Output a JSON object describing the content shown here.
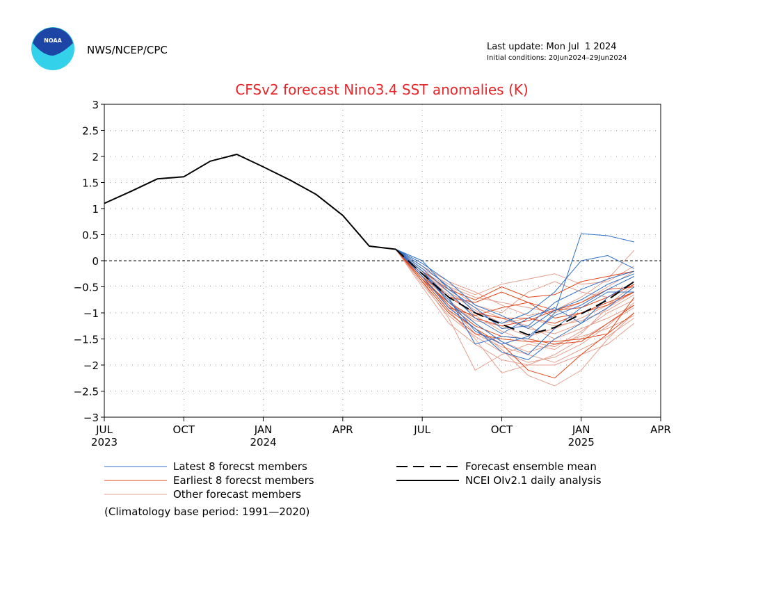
{
  "header": {
    "agency": "NWS/NCEP/CPC",
    "logo_text": "NOAA",
    "last_update": "Last update: Mon Jul  1 2024",
    "initial_conditions": "Initial conditions: 20Jun2024–29Jun2024"
  },
  "colors": {
    "title": "#e8262a",
    "latest": "#2f6fc6",
    "earliest": "#e0481b",
    "other": "#e3a08f",
    "analysis": "#000000",
    "logo_outer": "#34d1ea",
    "logo_inner": "#1d45a6"
  },
  "chart_data": {
    "type": "line",
    "title": "CFSv2 forecast Nino3.4 SST anomalies (K)",
    "xlabel": "",
    "ylabel": "",
    "ylim": [
      -3,
      3
    ],
    "xlim": [
      0,
      21
    ],
    "x_unit": "months since Jul 2023",
    "yticks": [
      "3",
      "2.5",
      "2",
      "1.5",
      "1",
      "0.5",
      "0",
      "−0.5",
      "−1",
      "−1.5",
      "−2",
      "−2.5",
      "−3"
    ],
    "ytick_values": [
      3,
      2.5,
      2,
      1.5,
      1,
      0.5,
      0,
      -0.5,
      -1,
      -1.5,
      -2,
      -2.5,
      -3
    ],
    "xticks": [
      {
        "x": 0,
        "label": "JUL",
        "year": "2023"
      },
      {
        "x": 3,
        "label": "OCT",
        "year": ""
      },
      {
        "x": 6,
        "label": "JAN",
        "year": "2024"
      },
      {
        "x": 9,
        "label": "APR",
        "year": ""
      },
      {
        "x": 12,
        "label": "JUL",
        "year": ""
      },
      {
        "x": 15,
        "label": "OCT",
        "year": ""
      },
      {
        "x": 18,
        "label": "JAN",
        "year": "2025"
      },
      {
        "x": 21,
        "label": "APR",
        "year": ""
      }
    ],
    "zero_line": 0,
    "grid": true,
    "analysis": {
      "name": "NCEI OIv2.1 daily analysis",
      "x": [
        0,
        1,
        2,
        3,
        4,
        5,
        6,
        7,
        8,
        9,
        10,
        11
      ],
      "y": [
        1.1,
        1.33,
        1.57,
        1.61,
        1.91,
        2.04,
        1.8,
        1.55,
        1.27,
        0.87,
        0.28,
        0.22
      ]
    },
    "ensemble_mean": {
      "name": "Forecast ensemble mean",
      "x": [
        11,
        12,
        13,
        14,
        15,
        16,
        17,
        18,
        19,
        20
      ],
      "y": [
        0.22,
        -0.25,
        -0.7,
        -1.0,
        -1.22,
        -1.42,
        -1.28,
        -1.02,
        -0.75,
        -0.4
      ]
    },
    "series": [
      {
        "name": "Latest 8 forecst members",
        "group": "latest",
        "x": [
          11,
          12,
          13,
          14,
          15,
          16,
          17,
          18,
          19,
          20
        ],
        "y": [
          0.22,
          -0.2,
          -0.7,
          -1.6,
          -1.45,
          -1.5,
          -1.0,
          0.52,
          0.48,
          0.36
        ]
      },
      {
        "name": "Latest 8 forecst members",
        "group": "latest",
        "x": [
          11,
          12,
          13,
          14,
          15,
          16,
          17,
          18,
          19,
          20
        ],
        "y": [
          0.22,
          -0.1,
          -0.5,
          -1.0,
          -1.2,
          -1.0,
          -0.6,
          0.0,
          0.1,
          -0.15
        ]
      },
      {
        "name": "Latest 8 forecst members",
        "group": "latest",
        "x": [
          11,
          12,
          13,
          14,
          15,
          16,
          17,
          18,
          19,
          20
        ],
        "y": [
          0.22,
          0.0,
          -0.55,
          -0.9,
          -1.3,
          -1.25,
          -0.8,
          -0.55,
          -0.35,
          -0.2
        ]
      },
      {
        "name": "Latest 8 forecst members",
        "group": "latest",
        "x": [
          11,
          12,
          13,
          14,
          15,
          16,
          17,
          18,
          19,
          20
        ],
        "y": [
          0.22,
          -0.3,
          -0.9,
          -1.3,
          -1.75,
          -1.9,
          -1.5,
          -1.2,
          -0.9,
          -0.5
        ]
      },
      {
        "name": "Latest 8 forecst members",
        "group": "latest",
        "x": [
          11,
          12,
          13,
          14,
          15,
          16,
          17,
          18,
          19,
          20
        ],
        "y": [
          0.22,
          -0.2,
          -0.8,
          -1.2,
          -1.55,
          -1.8,
          -1.3,
          -0.9,
          -0.6,
          -0.6
        ]
      },
      {
        "name": "Latest 8 forecst members",
        "group": "latest",
        "x": [
          11,
          12,
          13,
          14,
          15,
          16,
          17,
          18,
          19,
          20
        ],
        "y": [
          0.22,
          -0.15,
          -0.6,
          -1.1,
          -1.4,
          -1.1,
          -0.9,
          -1.2,
          -0.7,
          -0.4
        ]
      },
      {
        "name": "Latest 8 forecst members",
        "group": "latest",
        "x": [
          11,
          12,
          13,
          14,
          15,
          16,
          17,
          18,
          19,
          20
        ],
        "y": [
          0.22,
          -0.25,
          -0.75,
          -1.35,
          -1.6,
          -1.45,
          -1.05,
          -0.85,
          -0.55,
          -0.3
        ]
      },
      {
        "name": "Latest 8 forecst members",
        "group": "latest",
        "x": [
          11,
          12,
          13,
          14,
          15,
          16,
          17,
          18,
          19,
          20
        ],
        "y": [
          0.22,
          -0.05,
          -0.4,
          -0.85,
          -1.05,
          -1.3,
          -0.95,
          -0.75,
          -0.45,
          -0.25
        ]
      },
      {
        "name": "Earliest 8 forecst members",
        "group": "earliest",
        "x": [
          11,
          12,
          13,
          14,
          15,
          16,
          17,
          18,
          19,
          20
        ],
        "y": [
          0.22,
          -0.3,
          -0.7,
          -1.0,
          -1.1,
          -1.1,
          -1.2,
          -1.0,
          -0.8,
          -0.6
        ]
      },
      {
        "name": "Earliest 8 forecst members",
        "group": "earliest",
        "x": [
          11,
          12,
          13,
          14,
          15,
          16,
          17,
          18,
          19,
          20
        ],
        "y": [
          0.22,
          -0.4,
          -1.0,
          -1.4,
          -1.5,
          -1.55,
          -1.55,
          -1.5,
          -1.4,
          -1.0
        ]
      },
      {
        "name": "Earliest 8 forecst members",
        "group": "earliest",
        "x": [
          11,
          12,
          13,
          14,
          15,
          16,
          17,
          18,
          19,
          20
        ],
        "y": [
          0.22,
          -0.25,
          -0.7,
          -0.8,
          -0.6,
          -0.8,
          -0.95,
          -0.8,
          -0.55,
          -0.5
        ]
      },
      {
        "name": "Earliest 8 forecst members",
        "group": "earliest",
        "x": [
          11,
          12,
          13,
          14,
          15,
          16,
          17,
          18,
          19,
          20
        ],
        "y": [
          0.22,
          -0.35,
          -0.95,
          -1.3,
          -1.6,
          -2.1,
          -2.25,
          -1.8,
          -1.4,
          -0.7
        ]
      },
      {
        "name": "Earliest 8 forecst members",
        "group": "earliest",
        "x": [
          11,
          12,
          13,
          14,
          15,
          16,
          17,
          18,
          19,
          20
        ],
        "y": [
          0.22,
          -0.3,
          -0.9,
          -1.05,
          -0.9,
          -0.8,
          -1.1,
          -1.0,
          -0.85,
          -0.6
        ]
      },
      {
        "name": "Earliest 8 forecst members",
        "group": "earliest",
        "x": [
          11,
          12,
          13,
          14,
          15,
          16,
          17,
          18,
          19,
          20
        ],
        "y": [
          0.22,
          -0.2,
          -0.55,
          -0.75,
          -0.5,
          -0.7,
          -0.65,
          -0.4,
          -0.3,
          -0.2
        ]
      },
      {
        "name": "Earliest 8 forecst members",
        "group": "earliest",
        "x": [
          11,
          12,
          13,
          14,
          15,
          16,
          17,
          18,
          19,
          20
        ],
        "y": [
          0.22,
          -0.35,
          -0.8,
          -1.1,
          -1.25,
          -1.15,
          -0.95,
          -0.9,
          -0.7,
          -0.45
        ]
      },
      {
        "name": "Earliest 8 forecst members",
        "group": "earliest",
        "x": [
          11,
          12,
          13,
          14,
          15,
          16,
          17,
          18,
          19,
          20
        ],
        "y": [
          0.22,
          -0.3,
          -0.85,
          -1.25,
          -1.45,
          -1.5,
          -1.6,
          -1.55,
          -1.2,
          -0.85
        ]
      },
      {
        "name": "Other forecast members",
        "group": "other",
        "x": [
          11,
          12,
          13,
          14,
          15,
          16,
          17,
          18,
          19,
          20
        ],
        "y": [
          0.22,
          -0.5,
          -1.2,
          -1.6,
          -1.9,
          -2.0,
          -2.0,
          -1.8,
          -1.6,
          -1.2
        ]
      },
      {
        "name": "Other forecast members",
        "group": "other",
        "x": [
          11,
          12,
          13,
          14,
          15,
          16,
          17,
          18,
          19,
          20
        ],
        "y": [
          0.22,
          -0.3,
          -0.9,
          -1.3,
          -1.7,
          -2.2,
          -2.4,
          -2.1,
          -1.5,
          -1.0
        ]
      },
      {
        "name": "Other forecast members",
        "group": "other",
        "x": [
          11,
          12,
          13,
          14,
          15,
          16,
          17,
          18,
          19,
          20
        ],
        "y": [
          0.22,
          -0.4,
          -1.1,
          -2.1,
          -1.8,
          -1.6,
          -1.7,
          -1.4,
          -0.9,
          -0.6
        ]
      },
      {
        "name": "Other forecast members",
        "group": "other",
        "x": [
          11,
          12,
          13,
          14,
          15,
          16,
          17,
          18,
          19,
          20
        ],
        "y": [
          0.22,
          -0.2,
          -0.6,
          -0.9,
          -1.1,
          -1.3,
          -1.4,
          -1.2,
          -0.9,
          -0.5
        ]
      },
      {
        "name": "Other forecast members",
        "group": "other",
        "x": [
          11,
          12,
          13,
          14,
          15,
          16,
          17,
          18,
          19,
          20
        ],
        "y": [
          0.22,
          -0.1,
          -0.5,
          -0.7,
          -0.8,
          -0.9,
          -1.0,
          -0.8,
          -0.5,
          -0.2
        ]
      },
      {
        "name": "Other forecast members",
        "group": "other",
        "x": [
          11,
          12,
          13,
          14,
          15,
          16,
          17,
          18,
          19,
          20
        ],
        "y": [
          0.22,
          -0.35,
          -0.95,
          -1.5,
          -2.15,
          -2.0,
          -1.8,
          -1.5,
          -1.2,
          -0.9
        ]
      },
      {
        "name": "Other forecast members",
        "group": "other",
        "x": [
          11,
          12,
          13,
          14,
          15,
          16,
          17,
          18,
          19,
          20
        ],
        "y": [
          0.22,
          -0.3,
          -0.75,
          -1.2,
          -1.55,
          -1.75,
          -1.6,
          -1.45,
          -1.3,
          -1.05
        ]
      },
      {
        "name": "Other forecast members",
        "group": "other",
        "x": [
          11,
          12,
          13,
          14,
          15,
          16,
          17,
          18,
          19,
          20
        ],
        "y": [
          0.22,
          -0.15,
          -0.45,
          -0.65,
          -0.45,
          -0.35,
          -0.25,
          -0.45,
          -0.4,
          -0.1
        ]
      },
      {
        "name": "Other forecast members",
        "group": "other",
        "x": [
          11,
          12,
          13,
          14,
          15,
          16,
          17,
          18,
          19,
          20
        ],
        "y": [
          0.22,
          -0.25,
          -0.65,
          -1.05,
          -1.35,
          -1.55,
          -1.65,
          -1.35,
          -1.0,
          -0.75
        ]
      },
      {
        "name": "Other forecast members",
        "group": "other",
        "x": [
          11,
          12,
          13,
          14,
          15,
          16,
          17,
          18,
          19,
          20
        ],
        "y": [
          0.22,
          -0.45,
          -1.05,
          -1.45,
          -1.75,
          -1.95,
          -1.85,
          -1.6,
          -1.25,
          -0.8
        ]
      },
      {
        "name": "Other forecast members",
        "group": "other",
        "x": [
          11,
          12,
          13,
          14,
          15,
          16,
          17,
          18,
          19,
          20
        ],
        "y": [
          0.22,
          -0.2,
          -0.5,
          -0.85,
          -1.0,
          -0.6,
          -0.4,
          -0.6,
          -0.7,
          -0.4
        ]
      },
      {
        "name": "Other forecast members",
        "group": "other",
        "x": [
          11,
          12,
          13,
          14,
          15,
          16,
          17,
          18,
          19,
          20
        ],
        "y": [
          0.22,
          -0.4,
          -0.8,
          -1.15,
          -1.25,
          -1.45,
          -1.3,
          -1.1,
          -0.85,
          -0.45
        ]
      },
      {
        "name": "Other forecast members",
        "group": "other",
        "x": [
          11,
          12,
          13,
          14,
          15,
          16,
          17,
          18,
          19,
          20
        ],
        "y": [
          0.22,
          -0.3,
          -0.7,
          -1.0,
          -1.1,
          -1.25,
          -1.5,
          -1.3,
          -1.1,
          -0.85
        ]
      },
      {
        "name": "Other forecast members",
        "group": "other",
        "x": [
          11,
          12,
          13,
          14,
          15,
          16,
          17,
          18,
          19,
          20
        ],
        "y": [
          0.22,
          -0.35,
          -0.85,
          -1.4,
          -1.65,
          -1.8,
          -1.95,
          -1.7,
          -1.45,
          -1.1
        ]
      },
      {
        "name": "Other forecast members",
        "group": "other",
        "x": [
          11,
          12,
          13,
          14,
          15,
          16,
          17,
          18,
          19,
          20
        ],
        "y": [
          0.22,
          -0.1,
          -0.4,
          -0.6,
          -0.85,
          -1.05,
          -0.95,
          -0.7,
          -0.35,
          0.2
        ]
      },
      {
        "name": "Other forecast members",
        "group": "other",
        "x": [
          11,
          12,
          13,
          14,
          15,
          16,
          17,
          18,
          19,
          20
        ],
        "y": [
          0.22,
          -0.25,
          -0.6,
          -0.95,
          -1.2,
          -1.1,
          -1.25,
          -1.15,
          -0.95,
          -0.65
        ]
      }
    ],
    "legend": {
      "placement": "bottom",
      "items": [
        {
          "label": "Latest 8 forecst members",
          "style": "latest"
        },
        {
          "label": "Earliest 8 forecst members",
          "style": "earliest"
        },
        {
          "label": "Other forecast members",
          "style": "other"
        },
        {
          "label": "Forecast ensemble mean",
          "style": "mean"
        },
        {
          "label": "NCEI OIv2.1 daily analysis",
          "style": "analysis"
        }
      ]
    },
    "footnote": "(Climatology base period: 1991—2020)"
  }
}
